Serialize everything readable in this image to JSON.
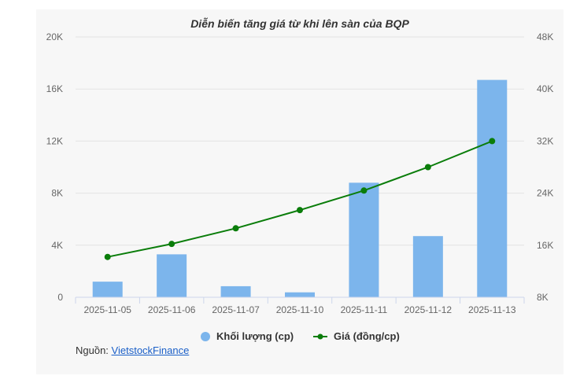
{
  "chart_data": {
    "type": "bar+line",
    "title": "Diễn biến tăng giá từ khi lên sàn của BQP",
    "categories": [
      "2025-11-05",
      "2025-11-06",
      "2025-11-07",
      "2025-11-10",
      "2025-11-11",
      "2025-11-12",
      "2025-11-13"
    ],
    "series": [
      {
        "name": "Khối lượng (cp)",
        "type": "bar",
        "axis": "left",
        "color": "#7cb5ec",
        "values": [
          1200,
          3300,
          850,
          380,
          8800,
          4700,
          16700
        ]
      },
      {
        "name": "Giá (đồng/cp)",
        "type": "line",
        "axis": "right",
        "color": "#0a7d0a",
        "values": [
          14200,
          16200,
          18600,
          21400,
          24400,
          28000,
          32000
        ]
      }
    ],
    "y_left": {
      "min": 0,
      "max": 20000,
      "ticks": [
        0,
        4000,
        8000,
        12000,
        16000,
        20000
      ],
      "tick_labels": [
        "0",
        "4K",
        "8K",
        "12K",
        "16K",
        "20K"
      ]
    },
    "y_right": {
      "min": 8000,
      "max": 48000,
      "ticks": [
        8000,
        16000,
        24000,
        32000,
        40000,
        48000
      ],
      "tick_labels": [
        "8K",
        "16K",
        "24K",
        "32K",
        "40K",
        "48K"
      ]
    },
    "grid": true,
    "legend_position": "bottom-center"
  },
  "source": {
    "prefix": "Nguồn:",
    "link_text": "VietstockFinance"
  }
}
